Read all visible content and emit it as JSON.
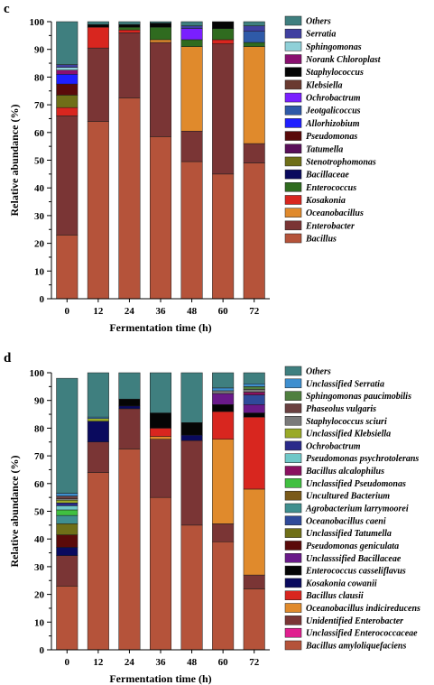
{
  "chart_data": [
    {
      "panel_label": "c",
      "type": "bar",
      "stacked": true,
      "categories": [
        "0",
        "12",
        "24",
        "36",
        "48",
        "60",
        "72"
      ],
      "xlabel": "Fermentation time (h)",
      "ylabel": "Relative abundance (%)",
      "ylim": [
        0,
        100
      ],
      "yticks": [
        0,
        10,
        20,
        30,
        40,
        50,
        60,
        70,
        80,
        90,
        100
      ],
      "grid": false,
      "legend_position": "right",
      "series": [
        {
          "name": "Bacillus",
          "color": "#b5533a",
          "values": [
            23,
            64,
            72.5,
            58.5,
            49.5,
            45,
            49
          ]
        },
        {
          "name": "Enterobacter",
          "color": "#7a3535",
          "values": [
            43,
            26.5,
            23.5,
            34,
            11,
            47,
            7
          ]
        },
        {
          "name": "Oceanobacillus",
          "color": "#e08a2c",
          "values": [
            0,
            0,
            0,
            1,
            30.5,
            0,
            35
          ]
        },
        {
          "name": "Kosakonia",
          "color": "#d8261f",
          "values": [
            3,
            7.5,
            1,
            0,
            0,
            1.5,
            0
          ]
        },
        {
          "name": "Enterococcus",
          "color": "#2f6b1f",
          "values": [
            0,
            0,
            1,
            4.5,
            2.5,
            4,
            1.5
          ]
        },
        {
          "name": "Bacillaceae",
          "color": "#0a0a5e",
          "values": [
            0,
            0,
            0,
            0,
            0,
            0,
            0
          ]
        },
        {
          "name": "Stenotrophomonas",
          "color": "#6f6f18",
          "values": [
            4.5,
            0,
            0,
            0,
            0,
            0,
            0
          ]
        },
        {
          "name": "Tatumella",
          "color": "#5a0f5a",
          "values": [
            0,
            0,
            0,
            0,
            0,
            0,
            0
          ]
        },
        {
          "name": "Pseudomonas",
          "color": "#5a0a0a",
          "values": [
            4,
            0,
            0,
            0,
            0,
            0,
            0
          ]
        },
        {
          "name": "Allorhizobium",
          "color": "#1f1fff",
          "values": [
            3.5,
            0,
            0,
            0,
            0,
            0,
            0
          ]
        },
        {
          "name": "Jeotgalicoccus",
          "color": "#2f5aa8",
          "values": [
            0,
            0,
            0,
            0,
            0,
            0,
            4
          ]
        },
        {
          "name": "Ochrobactrum",
          "color": "#7a1fff",
          "values": [
            0,
            0,
            0,
            0,
            4,
            0,
            0
          ]
        },
        {
          "name": "Klebsiella",
          "color": "#6a3a30",
          "values": [
            0,
            0,
            0,
            0,
            0,
            0,
            0
          ]
        },
        {
          "name": "Staphylococcus",
          "color": "#050505",
          "values": [
            0,
            1,
            1,
            1.5,
            0,
            2.5,
            0
          ]
        },
        {
          "name": "Norank Chloroplast",
          "color": "#8a1070",
          "values": [
            1.5,
            0,
            0,
            0,
            0,
            0,
            0
          ]
        },
        {
          "name": "Sphingomonas",
          "color": "#8fd0d8",
          "values": [
            1,
            0,
            0,
            0,
            0,
            0,
            0
          ]
        },
        {
          "name": "Serratia",
          "color": "#4040a0",
          "values": [
            1,
            0,
            0,
            0,
            1,
            0,
            2
          ]
        },
        {
          "name": "Others",
          "color": "#3f7f7f",
          "values": [
            15.5,
            1,
            1,
            0.5,
            1.5,
            0,
            1.5
          ]
        }
      ]
    },
    {
      "panel_label": "d",
      "type": "bar",
      "stacked": true,
      "categories": [
        "0",
        "12",
        "24",
        "36",
        "48",
        "60",
        "72"
      ],
      "xlabel": "Fermentation time (h)",
      "ylabel": "Relative abundance (%)",
      "ylim": [
        0,
        100
      ],
      "yticks": [
        0,
        10,
        20,
        30,
        40,
        50,
        60,
        70,
        80,
        90,
        100
      ],
      "grid": false,
      "legend_position": "right",
      "series": [
        {
          "name": "Bacillus amyloliquefaciens",
          "color": "#b5533a",
          "values": [
            23,
            64,
            72.5,
            55,
            45,
            39,
            22
          ]
        },
        {
          "name": "Unclassified Enterococcaceae",
          "color": "#e01f8f",
          "values": [
            0,
            0,
            0,
            0,
            0,
            0,
            0
          ]
        },
        {
          "name": "Unidentified Enterobacter",
          "color": "#7a3535",
          "values": [
            11,
            11,
            14.5,
            21,
            30.5,
            6.5,
            5
          ]
        },
        {
          "name": "Oceanobacillus indicireducens",
          "color": "#e08a2c",
          "values": [
            0,
            0,
            0,
            1,
            0,
            30.5,
            31
          ]
        },
        {
          "name": "Bacillus clausii",
          "color": "#d8261f",
          "values": [
            0,
            0,
            0,
            3,
            0,
            10,
            26
          ]
        },
        {
          "name": "Kosakonia cowanii",
          "color": "#0a0a5e",
          "values": [
            3,
            7.5,
            1,
            0,
            2,
            0,
            0
          ]
        },
        {
          "name": "Enterococcus casseliflavus",
          "color": "#050505",
          "values": [
            0,
            0,
            2.5,
            5.5,
            4.5,
            2.5,
            1.5
          ]
        },
        {
          "name": "Unclasssified Bacillaceae",
          "color": "#6a1a8a",
          "values": [
            0,
            0,
            0,
            0,
            0,
            4,
            3
          ]
        },
        {
          "name": "Pseudomonas geniculata",
          "color": "#5a0a0a",
          "values": [
            4.5,
            0,
            0,
            0,
            0,
            0,
            0
          ]
        },
        {
          "name": "Unclassified Tatumella",
          "color": "#6f6f18",
          "values": [
            4,
            0,
            0,
            0,
            0,
            0,
            0
          ]
        },
        {
          "name": "Oceanobacillus caeni",
          "color": "#2f4a9a",
          "values": [
            0,
            0,
            0,
            0,
            0,
            0,
            3.5
          ]
        },
        {
          "name": "Agrobacterium larrymoorei",
          "color": "#3f8f8f",
          "values": [
            3,
            0,
            0,
            0,
            0,
            0,
            0
          ]
        },
        {
          "name": "Uncultured Bacterium",
          "color": "#7a5a1a",
          "values": [
            0,
            0,
            0,
            0,
            0,
            0,
            0
          ]
        },
        {
          "name": "Unclassified Pseudomonas",
          "color": "#40c040",
          "values": [
            2,
            0,
            0,
            0,
            0,
            0,
            0
          ]
        },
        {
          "name": "Bacillus alcalophilus",
          "color": "#8a1060",
          "values": [
            0,
            0,
            0,
            0,
            0,
            0,
            1
          ]
        },
        {
          "name": "Pseudomonas psychrotolerans",
          "color": "#6fc8c8",
          "values": [
            1.5,
            0,
            0,
            0,
            0,
            0,
            0
          ]
        },
        {
          "name": "Ochrobactrum",
          "color": "#2a2a8a",
          "values": [
            1,
            0,
            0,
            0,
            0,
            0,
            0
          ]
        },
        {
          "name": "Unclassified Klebsiella",
          "color": "#9aaa28",
          "values": [
            1,
            1,
            0,
            0,
            0,
            0,
            0
          ]
        },
        {
          "name": "Staphylococcus sciuri",
          "color": "#7a7a7a",
          "values": [
            0.5,
            0,
            0,
            0,
            0,
            1,
            1
          ]
        },
        {
          "name": "Phaseolus vulgaris",
          "color": "#6a4040",
          "values": [
            1,
            0,
            0,
            0,
            0,
            0,
            0
          ]
        },
        {
          "name": "Sphingomonas paucimobilis",
          "color": "#4f7f3f",
          "values": [
            0,
            0,
            0,
            0,
            0,
            0,
            1
          ]
        },
        {
          "name": "Unclassified Serratia",
          "color": "#3f8fcf",
          "values": [
            1,
            0.5,
            0,
            0,
            0,
            1,
            1
          ]
        },
        {
          "name": "Others",
          "color": "#3f7f7f",
          "values": [
            41.5,
            16,
            9.5,
            14.5,
            18,
            5.5,
            4
          ]
        }
      ]
    }
  ]
}
